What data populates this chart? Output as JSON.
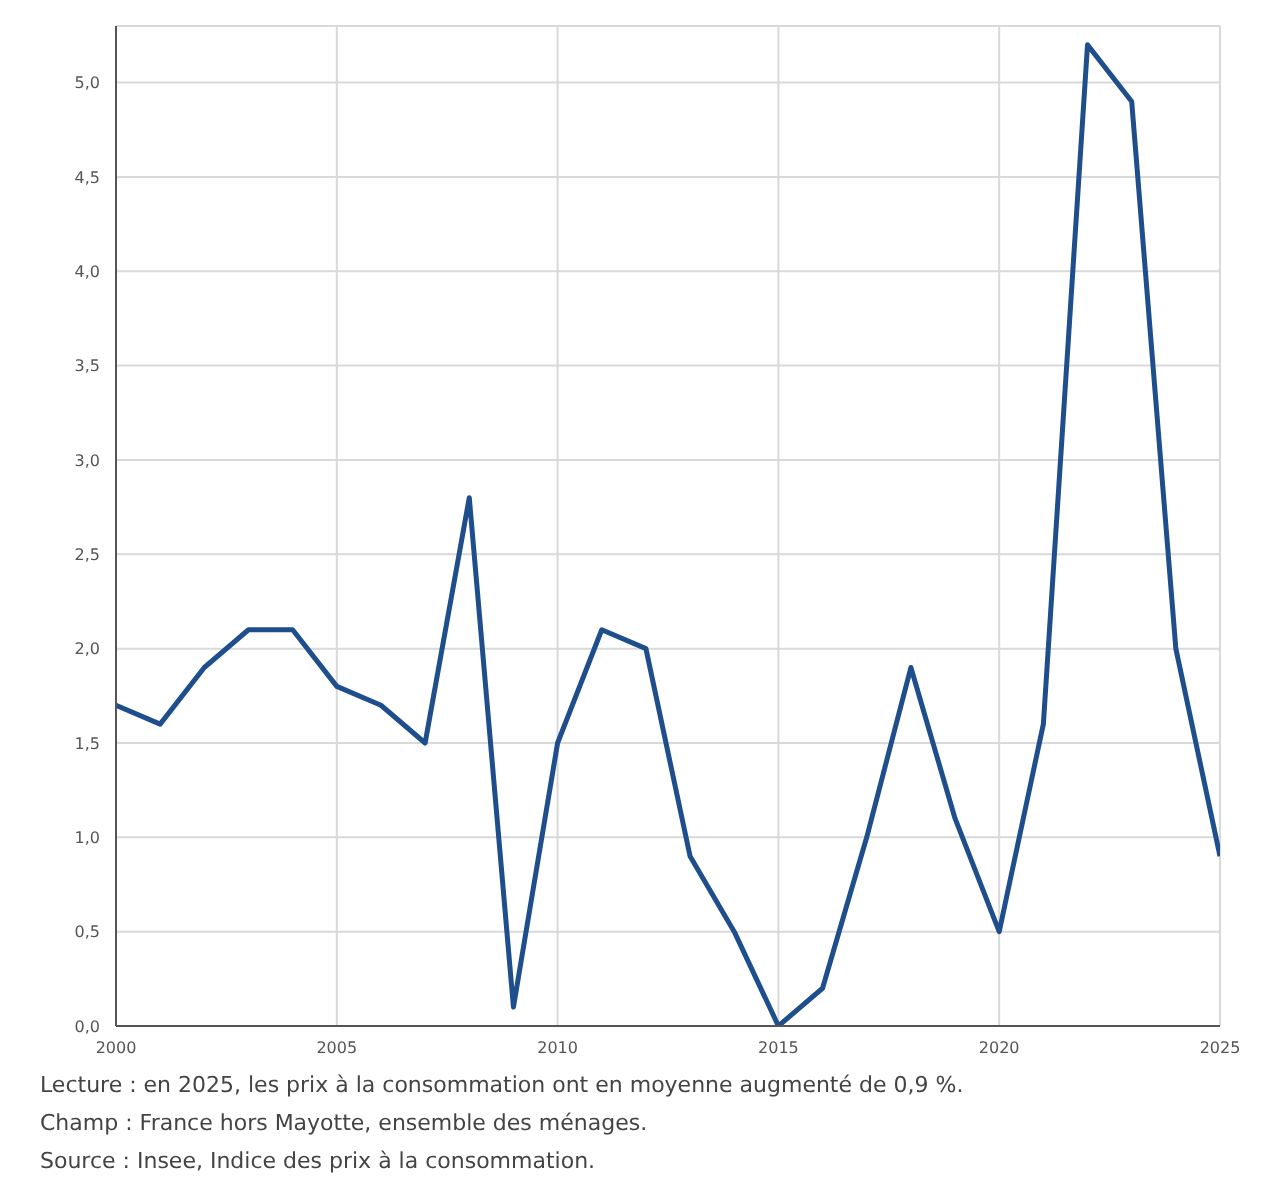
{
  "chart_data": {
    "type": "line",
    "x": [
      2000,
      2001,
      2002,
      2003,
      2004,
      2005,
      2006,
      2007,
      2008,
      2009,
      2010,
      2011,
      2012,
      2013,
      2014,
      2015,
      2016,
      2017,
      2018,
      2019,
      2020,
      2021,
      2022,
      2023,
      2024,
      2025
    ],
    "series": [
      {
        "color": "#1f4e8c",
        "values": [
          1.7,
          1.6,
          1.9,
          2.1,
          2.1,
          1.8,
          1.7,
          1.5,
          2.8,
          0.1,
          1.5,
          2.1,
          2.0,
          0.9,
          0.5,
          0.0,
          0.2,
          1.0,
          1.9,
          1.1,
          0.5,
          1.6,
          5.2,
          4.9,
          2.0,
          0.9
        ]
      }
    ],
    "xlim": [
      2000,
      2025
    ],
    "xticks": [
      2000,
      2005,
      2010,
      2015,
      2020,
      2025
    ],
    "ylim": [
      0,
      5.3
    ],
    "yticks": [
      {
        "value": 0,
        "label": "0,0"
      },
      {
        "value": 0.5,
        "label": "0,5"
      },
      {
        "value": 1,
        "label": "1,0"
      },
      {
        "value": 1.5,
        "label": "1,5"
      },
      {
        "value": 2,
        "label": "2,0"
      },
      {
        "value": 2.5,
        "label": "2,5"
      },
      {
        "value": 3,
        "label": "3,0"
      },
      {
        "value": 3.5,
        "label": "3,5"
      },
      {
        "value": 4,
        "label": "4,0"
      },
      {
        "value": 4.5,
        "label": "4,5"
      },
      {
        "value": 5,
        "label": "5,0"
      }
    ],
    "grid": true,
    "marker": "none",
    "line_style": "solid",
    "legend": false,
    "annotations": [
      "Lecture : en 2025, les prix à la consommation ont en moyenne augmenté de 0,9 %.",
      "Champ : France hors Mayotte, ensemble des ménages.",
      "Source : Insee, Indice des prix à la consommation."
    ]
  }
}
